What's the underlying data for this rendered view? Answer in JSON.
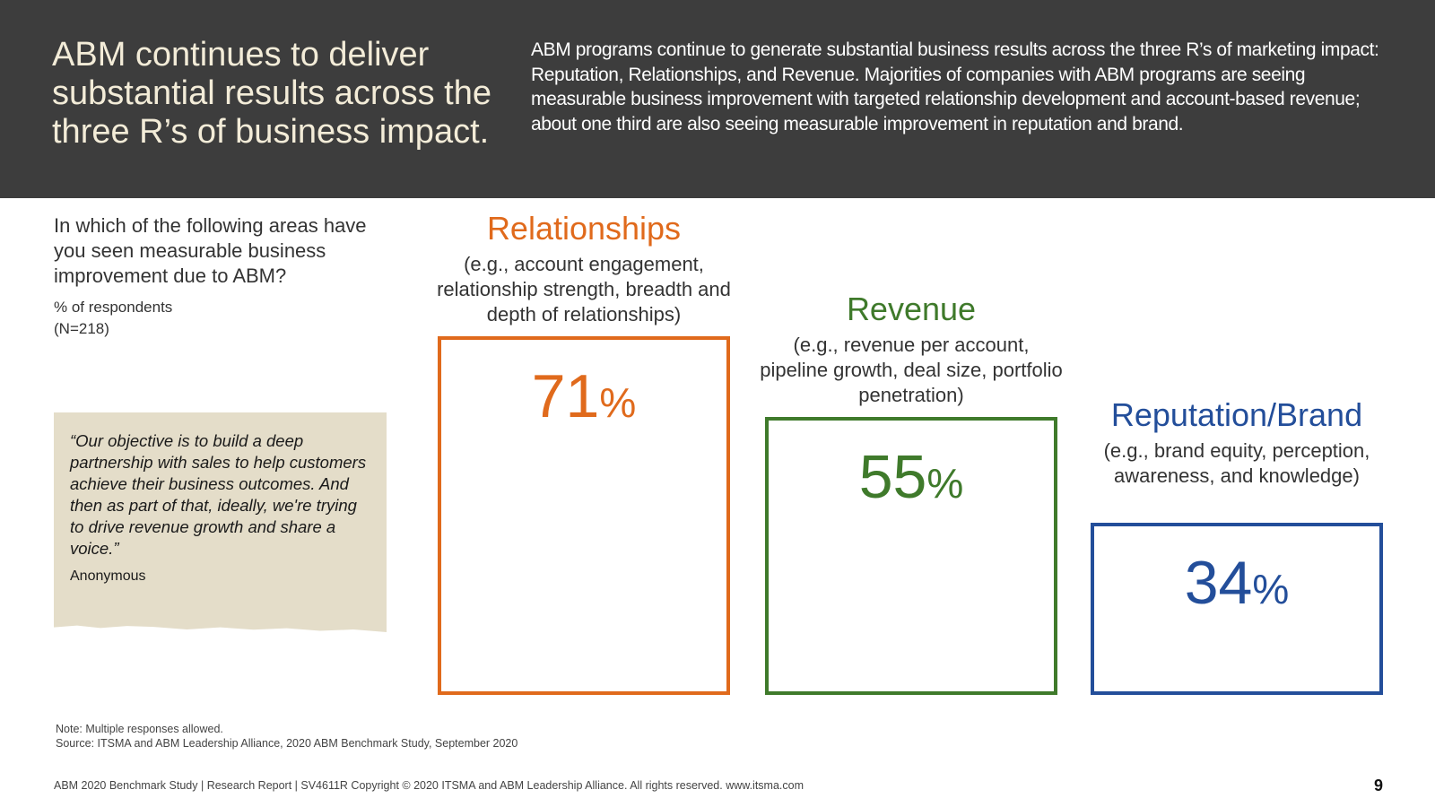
{
  "header": {
    "title": "ABM continues to deliver substantial results across the three R’s of business impact.",
    "summary": "ABM programs continue to generate substantial business results across the three R’s of marketing impact: Reputation, Relationships, and Revenue. Majorities of companies with ABM programs are seeing measurable business improvement with targeted relationship development and account-based revenue; about one third are also seeing measurable improvement in reputation and brand."
  },
  "question": "In which of the following areas have you seen measurable business improvement due to ABM?",
  "unit_line1": "% of respondents",
  "unit_line2": "(N=218)",
  "quote": {
    "text": "“Our objective is to build a deep partnership with sales to help customers achieve their business outcomes. And then as part of that, ideally, we're trying to drive revenue growth and share a voice.”",
    "author": "Anonymous"
  },
  "chart_data": {
    "type": "bar",
    "title": "",
    "xlabel": "",
    "ylabel": "% of respondents",
    "ylim": [
      0,
      100
    ],
    "categories": [
      "Relationships",
      "Revenue",
      "Reputation/Brand"
    ],
    "values": [
      71,
      55,
      34
    ],
    "unit_suffix": "%",
    "descriptions": [
      "(e.g., account engagement, relationship strength, breadth and depth of relationships)",
      "(e.g., revenue per account, pipeline growth, deal size, portfolio penetration)",
      "(e.g., brand equity, perception, awareness, and knowledge)"
    ],
    "colors": [
      "#e06a1c",
      "#3f7a2b",
      "#234e9a"
    ]
  },
  "notes": {
    "note": "Note: Multiple responses allowed.",
    "source": "Source: ITSMA and ABM Leadership Alliance, 2020 ABM Benchmark Study, September 2020"
  },
  "footer": {
    "text": "ABM 2020 Benchmark Study | Research Report | SV4611R Copyright © 2020 ITSMA and ABM Leadership Alliance. All rights reserved. www.itsma.com",
    "page_number": "9"
  }
}
